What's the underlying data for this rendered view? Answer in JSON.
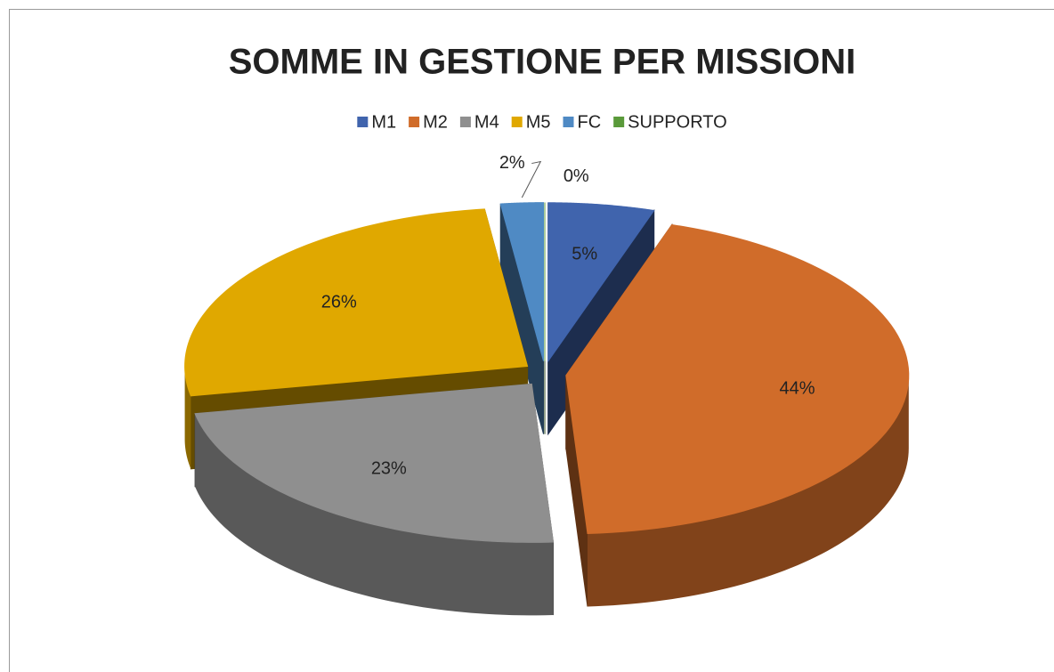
{
  "chart_data": {
    "type": "pie",
    "title": "SOMME IN GESTIONE PER MISSIONI",
    "categories": [
      "M1",
      "M2",
      "M4",
      "M5",
      "FC",
      "SUPPORTO"
    ],
    "values": [
      5,
      44,
      23,
      26,
      2,
      0
    ],
    "value_labels": [
      "5%",
      "44%",
      "23%",
      "26%",
      "2%",
      "0%"
    ],
    "colors": [
      "#4064ad",
      "#d06c2a",
      "#8f8f8f",
      "#e0a800",
      "#4f8ac4",
      "#5a9a3a"
    ],
    "legend": "top"
  }
}
